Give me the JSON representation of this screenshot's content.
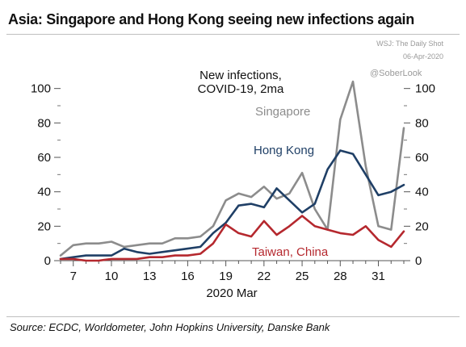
{
  "header": {
    "title": "Asia: Singapore and Hong Kong seeing new infections again",
    "credit_source": "WSJ: The Daily Shot",
    "credit_date": "06-Apr-2020"
  },
  "footer": {
    "source": "Source: ECDC, Worldometer, John Hopkins University, Danske Bank"
  },
  "chart_data": {
    "type": "line",
    "title": "New infections, COVID-19, 2ma",
    "title_lines": [
      "New infections,",
      "COVID-19, 2ma"
    ],
    "watermark": "@SoberLook",
    "xlabel": "2020 Mar",
    "x": [
      6,
      7,
      8,
      9,
      10,
      11,
      12,
      13,
      14,
      15,
      16,
      17,
      18,
      19,
      20,
      21,
      22,
      23,
      24,
      25,
      26,
      27,
      28,
      29,
      30,
      31,
      32,
      33
    ],
    "x_ticks": [
      7,
      10,
      13,
      16,
      19,
      22,
      25,
      28,
      31
    ],
    "x_tick_labels": [
      "7",
      "10",
      "13",
      "16",
      "19",
      "22",
      "25",
      "28",
      "31"
    ],
    "xlim": [
      6,
      33
    ],
    "ylim": [
      0,
      105
    ],
    "y_ticks": [
      0,
      20,
      40,
      60,
      80,
      100
    ],
    "y_tick_labels": [
      "0",
      "20",
      "40",
      "60",
      "80",
      "100"
    ],
    "y_ticks_right": [
      0,
      20,
      40,
      60,
      80,
      100
    ],
    "y_tick_labels_right": [
      "0",
      "20",
      "40",
      "60",
      "80",
      "100"
    ],
    "grid": false,
    "series": [
      {
        "name": "Singapore",
        "color": "#8c8c8c",
        "values": [
          3,
          9,
          10,
          10,
          11,
          8,
          9,
          10,
          10,
          13,
          13,
          14,
          20,
          35,
          39,
          37,
          43,
          36,
          39,
          51,
          30,
          18,
          82,
          104,
          55,
          20,
          18,
          77
        ]
      },
      {
        "name": "Hong Kong",
        "color": "#1f3f66",
        "values": [
          1,
          2,
          3,
          3,
          3,
          7,
          5,
          4,
          5,
          6,
          7,
          8,
          16,
          22,
          32,
          33,
          31,
          42,
          35,
          28,
          33,
          53,
          64,
          62,
          50,
          38,
          40,
          44
        ]
      },
      {
        "name": "Taiwan, China",
        "color": "#b5282e",
        "values": [
          1,
          1,
          0,
          0,
          1,
          1,
          1,
          2,
          2,
          3,
          3,
          4,
          10,
          21,
          16,
          14,
          23,
          15,
          20,
          26,
          20,
          18,
          16,
          15,
          20,
          12,
          8,
          17
        ]
      }
    ],
    "annotations": [
      {
        "text": "Singapore",
        "color": "#8c8c8c"
      },
      {
        "text": "Hong Kong",
        "color": "#1f3f66"
      },
      {
        "text": "Taiwan, China",
        "color": "#b5282e"
      }
    ]
  }
}
